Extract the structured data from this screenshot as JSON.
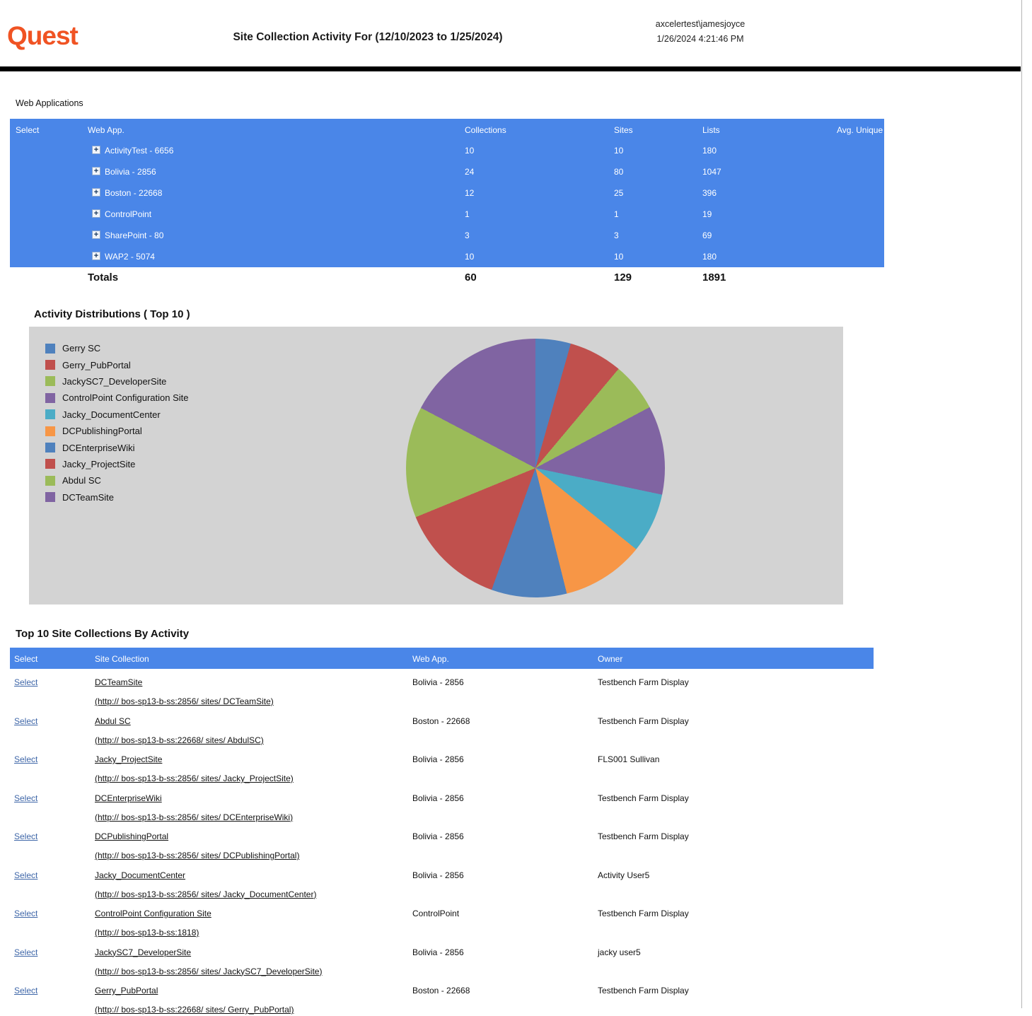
{
  "header": {
    "logo_text": "Quest",
    "title": "Site Collection Activity For (12/10/2023 to 1/25/2024)",
    "user": "axcelertest\\jamesjoyce",
    "timestamp": "1/26/2024 4:21:46 PM"
  },
  "colors": {
    "table_header_blue": "#4A86E8",
    "brand_orange": "#F05323",
    "chart_background": "#D3D3D3"
  },
  "icons": {
    "expand_glyph": "+"
  },
  "web_applications": {
    "section_label": "Web Applications",
    "columns": [
      "Select",
      "Web App.",
      "Collections",
      "Sites",
      "Lists",
      "Avg. Unique Users"
    ],
    "rows": [
      {
        "name": "ActivityTest - 6656",
        "collections": "10",
        "sites": "10",
        "lists": "180"
      },
      {
        "name": "Bolivia - 2856",
        "collections": "24",
        "sites": "80",
        "lists": "1047"
      },
      {
        "name": "Boston - 22668",
        "collections": "12",
        "sites": "25",
        "lists": "396"
      },
      {
        "name": "ControlPoint",
        "collections": "1",
        "sites": "1",
        "lists": "19"
      },
      {
        "name": "SharePoint - 80",
        "collections": "3",
        "sites": "3",
        "lists": "69"
      },
      {
        "name": "WAP2 - 5074",
        "collections": "10",
        "sites": "10",
        "lists": "180"
      }
    ],
    "totals": {
      "label": "Totals",
      "collections": "60",
      "sites": "129",
      "lists": "1891"
    }
  },
  "chart_data": {
    "type": "pie",
    "title": "Activity Distributions ( Top 10 )",
    "legend_position": "left",
    "start_angle_deg": 0,
    "categories": [
      "Gerry SC",
      "Gerry_PubPortal",
      "JackySC7_DeveloperSite",
      "ControlPoint Configuration Site",
      "Jacky_DocumentCenter",
      "DCPublishingPortal",
      "DCEnterpriseWiki",
      "Jacky_ProjectSite",
      "Abdul SC",
      "DCTeamSite"
    ],
    "values": [
      4.4,
      6.7,
      6.1,
      11.1,
      7.5,
      10.3,
      9.4,
      13.3,
      13.9,
      17.3
    ],
    "colors": [
      "#4F81BD",
      "#C0504D",
      "#9BBB59",
      "#8064A2",
      "#4BACC6",
      "#F79646",
      "#4F81BD",
      "#C0504D",
      "#9BBB59",
      "#8064A2"
    ]
  },
  "top_sites": {
    "title": "Top 10 Site Collections By Activity",
    "columns": [
      "Select",
      "Site Collection",
      "Web App.",
      "Owner"
    ],
    "select_label": "Select",
    "rows": [
      {
        "name": "DCTeamSite",
        "url": "(http:// bos-sp13-b-ss:2856/ sites/ DCTeamSite)",
        "web_app": "Bolivia - 2856",
        "owner": "Testbench Farm Display"
      },
      {
        "name": "Abdul SC",
        "url": "(http:// bos-sp13-b-ss:22668/ sites/ AbdulSC)",
        "web_app": "Boston - 22668",
        "owner": "Testbench Farm Display"
      },
      {
        "name": "Jacky_ProjectSite",
        "url": "(http:// bos-sp13-b-ss:2856/ sites/ Jacky_ProjectSite)",
        "web_app": "Bolivia - 2856",
        "owner": "FLS001 Sullivan"
      },
      {
        "name": "DCEnterpriseWiki",
        "url": "(http:// bos-sp13-b-ss:2856/ sites/ DCEnterpriseWiki)",
        "web_app": "Bolivia - 2856",
        "owner": "Testbench Farm Display"
      },
      {
        "name": "DCPublishingPortal",
        "url": "(http:// bos-sp13-b-ss:2856/ sites/ DCPublishingPortal)",
        "web_app": "Bolivia - 2856",
        "owner": "Testbench Farm Display"
      },
      {
        "name": "Jacky_DocumentCenter",
        "url": "(http:// bos-sp13-b-ss:2856/ sites/ Jacky_DocumentCenter)",
        "web_app": "Bolivia - 2856",
        "owner": "Activity User5"
      },
      {
        "name": "ControlPoint Configuration Site",
        "url": "(http:// bos-sp13-b-ss:1818)",
        "web_app": "ControlPoint",
        "owner": "Testbench Farm Display"
      },
      {
        "name": "JackySC7_DeveloperSite",
        "url": "(http:// bos-sp13-b-ss:2856/ sites/ JackySC7_DeveloperSite)",
        "web_app": "Bolivia - 2856",
        "owner": "jacky user5"
      },
      {
        "name": "Gerry_PubPortal",
        "url": "(http:// bos-sp13-b-ss:22668/ sites/ Gerry_PubPortal)",
        "web_app": "Boston - 22668",
        "owner": "Testbench Farm Display"
      }
    ]
  }
}
